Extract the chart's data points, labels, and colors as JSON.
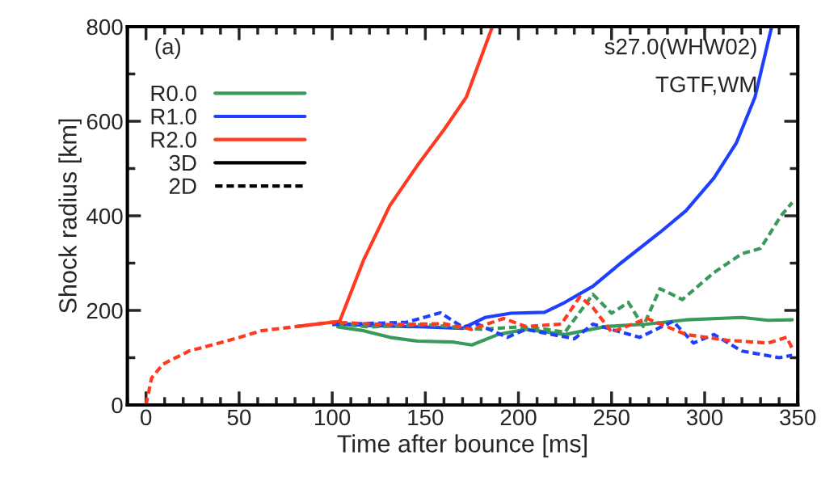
{
  "chart_data": {
    "type": "line",
    "xlabel": "Time after bounce [ms]",
    "ylabel": "Shock radius [km]",
    "xlim": [
      -10,
      350
    ],
    "xticks": [
      0,
      50,
      100,
      150,
      200,
      250,
      300,
      350
    ],
    "ylim": [
      0,
      800
    ],
    "yticks": [
      0,
      200,
      400,
      600,
      800
    ],
    "grid": false,
    "legend": "top left",
    "marker": "none",
    "annotations": [
      "(a)",
      "s27.0(WHW02)",
      "TGTF,WM"
    ],
    "series": [
      {
        "name": "R0.0",
        "color": "#3a9a5c",
        "line_style": "solid",
        "x": [
          103,
          117,
          131,
          146,
          165,
          175,
          189,
          204,
          225,
          247,
          269,
          290,
          320,
          334,
          347
        ],
        "values": [
          165,
          157,
          143,
          135,
          133,
          127,
          149,
          160,
          149,
          166,
          171,
          180,
          185,
          179,
          180
        ]
      },
      {
        "name": "R1.0",
        "color": "#1f3fff",
        "line_style": "solid",
        "x": [
          103,
          120,
          150,
          170,
          182,
          196,
          214,
          225,
          240,
          254,
          276,
          290,
          305,
          317,
          327,
          336
        ],
        "values": [
          171,
          168,
          165,
          162,
          185,
          194,
          196,
          217,
          251,
          297,
          365,
          411,
          480,
          554,
          651,
          800
        ]
      },
      {
        "name": "R2.0",
        "color": "#ff3a1f",
        "line_style": "solid",
        "x": [
          81,
          104,
          117,
          131,
          146,
          160,
          172,
          186
        ],
        "values": [
          166,
          177,
          308,
          422,
          508,
          582,
          651,
          800
        ]
      },
      {
        "color": "#3a9a5c",
        "line_style": "dashed",
        "x": [
          103,
          120,
          150,
          180,
          200,
          215,
          225,
          240,
          250,
          259,
          267,
          276,
          288,
          305,
          320,
          330,
          341,
          347
        ],
        "values": [
          171,
          165,
          170,
          160,
          165,
          160,
          154,
          234,
          194,
          217,
          166,
          246,
          223,
          280,
          320,
          331,
          400,
          428
        ]
      },
      {
        "color": "#1f3fff",
        "line_style": "dashed",
        "x": [
          100,
          140,
          158,
          170,
          178,
          194,
          204,
          230,
          240,
          265,
          283,
          294,
          305,
          320,
          340,
          347
        ],
        "values": [
          170,
          175,
          195,
          165,
          171,
          143,
          160,
          140,
          171,
          143,
          177,
          131,
          149,
          114,
          100,
          105
        ]
      },
      {
        "color": "#ff3a1f",
        "line_style": "dashed",
        "x": [
          0,
          3,
          9,
          23,
          45,
          62,
          81,
          100,
          130,
          160,
          175,
          192,
          204,
          223,
          233,
          240,
          250,
          269,
          290,
          312,
          334,
          344,
          347
        ],
        "values": [
          0,
          57,
          86,
          114,
          137,
          157,
          166,
          175,
          170,
          172,
          160,
          183,
          166,
          171,
          229,
          206,
          154,
          183,
          149,
          137,
          131,
          143,
          120
        ]
      },
      {
        "name": "3D",
        "color": "#000000",
        "line_style": "solid"
      },
      {
        "name": "2D",
        "color": "#000000",
        "line_style": "dashed"
      }
    ]
  }
}
